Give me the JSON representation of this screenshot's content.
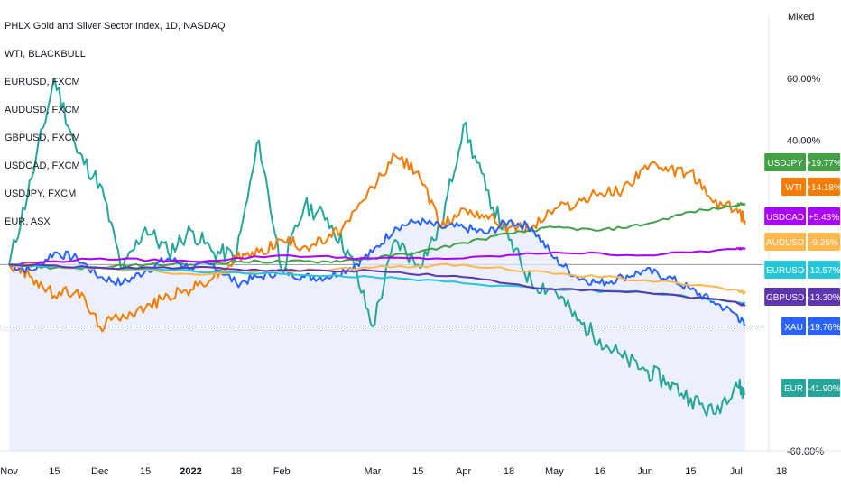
{
  "header": {
    "title": "PHLX Gold and Silver Sector Index, 1D, NASDAQ",
    "overlays": [
      "WTI, BLACKBULL",
      "EURUSD, FXCM",
      "AUDUSD, FXCM",
      "GBPUSD, FXCM",
      "USDCAD, FXCM",
      "USDJPY, FXCM",
      "EUR, ASX"
    ]
  },
  "scale_mode": "Mixed",
  "colors": {
    "XAU": "#2962ff",
    "WTI": "#f57c00",
    "EURUSD": "#26c6da",
    "AUDUSD": "#ffb74d",
    "GBPUSD": "#5e35b1",
    "USDCAD": "#aa00ff",
    "USDJPY": "#43a047",
    "EUR": "#26a69a",
    "area_fill": "#e3e9fb",
    "baseline": "#9598a1"
  },
  "chart_data": {
    "type": "line",
    "title": "PHLX Gold and Silver Sector Index, 1D, NASDAQ",
    "xlabel": "",
    "ylabel": "",
    "ylim": [
      -60,
      80
    ],
    "y_ticks": [
      "60.00%",
      "40.00%",
      "-60.00%"
    ],
    "x_ticks": [
      "Nov",
      "15",
      "Dec",
      "15",
      "2022",
      "18",
      "Feb",
      "Mar",
      "15",
      "Apr",
      "18",
      "May",
      "16",
      "Jun",
      "15",
      "Jul",
      "18"
    ],
    "x_tick_months": [
      0,
      0.5,
      1,
      1.5,
      2,
      2.5,
      3,
      4,
      4.5,
      5,
      5.5,
      6,
      6.5,
      7,
      7.5,
      8,
      8.5
    ],
    "x_range": [
      -0.1,
      8.3
    ],
    "series": [
      {
        "name": "EUR",
        "label": "EUR",
        "value_label": "-41.90%",
        "months": [
          0,
          0.25,
          0.5,
          0.75,
          1,
          1.25,
          1.5,
          1.75,
          2,
          2.25,
          2.5,
          2.75,
          3,
          3.25,
          3.5,
          3.75,
          4,
          4.25,
          4.5,
          4.75,
          5,
          5.25,
          5.5,
          5.75,
          6,
          6.25,
          6.5,
          6.75,
          7,
          7.25,
          7.5,
          7.75,
          8,
          8.1
        ],
        "values": [
          0,
          28,
          60,
          36,
          26,
          -2,
          12,
          4,
          11,
          4,
          3,
          40,
          -2,
          19,
          15,
          3,
          -20,
          8,
          0,
          12,
          45,
          24,
          8,
          -6,
          -8,
          -18,
          -24,
          -30,
          -34,
          -38,
          -43,
          -48,
          -38,
          -41.9
        ]
      },
      {
        "name": "WTI",
        "label": "WTI",
        "value_label": "+14.18%",
        "months": [
          0,
          0.25,
          0.5,
          0.75,
          1,
          1.25,
          1.5,
          1.75,
          2,
          2.25,
          2.5,
          2.75,
          3,
          3.25,
          3.5,
          3.75,
          4,
          4.25,
          4.5,
          4.75,
          5,
          5.25,
          5.5,
          5.75,
          6,
          6.25,
          6.5,
          6.75,
          7,
          7.25,
          7.5,
          7.75,
          8,
          8.1
        ],
        "values": [
          0,
          -4,
          -10,
          -8,
          -20,
          -16,
          -14,
          -10,
          -8,
          -4,
          2,
          4,
          8,
          6,
          8,
          14,
          25,
          35,
          30,
          12,
          18,
          16,
          12,
          12,
          18,
          20,
          23,
          24,
          32,
          30,
          30,
          20,
          18,
          14.18
        ]
      },
      {
        "name": "USDJPY",
        "label": "USDJPY",
        "value_label": "+19.77%",
        "months": [
          0,
          0.5,
          1,
          1.5,
          2,
          2.5,
          3,
          3.5,
          4,
          4.5,
          5,
          5.5,
          6,
          6.5,
          7,
          7.5,
          8,
          8.1
        ],
        "values": [
          0,
          -1,
          -1,
          0,
          0,
          1,
          1,
          1,
          2,
          4,
          7,
          10,
          12,
          11,
          13,
          17,
          19,
          19.77
        ]
      },
      {
        "name": "XAU",
        "label": "XAU",
        "value_label": "-19.76%",
        "months": [
          0,
          0.25,
          0.5,
          0.75,
          1,
          1.25,
          1.5,
          1.75,
          2,
          2.25,
          2.5,
          2.75,
          3,
          3.25,
          3.5,
          3.75,
          4,
          4.25,
          4.5,
          4.75,
          5,
          5.25,
          5.5,
          5.75,
          6,
          6.25,
          6.5,
          6.75,
          7,
          7.25,
          7.5,
          7.75,
          8,
          8.1
        ],
        "values": [
          0,
          -2,
          4,
          2,
          -4,
          -6,
          -2,
          2,
          -1,
          0,
          -6,
          -4,
          -2,
          -4,
          -4,
          -1,
          4,
          12,
          14,
          12,
          12,
          10,
          14,
          12,
          2,
          -4,
          -6,
          -4,
          -2,
          -4,
          -8,
          -12,
          -16,
          -19.76
        ]
      },
      {
        "name": "USDCAD",
        "label": "USDCAD",
        "value_label": "+5.43%",
        "months": [
          0,
          1,
          2,
          3,
          4,
          5,
          6,
          7,
          8,
          8.1
        ],
        "values": [
          0,
          2,
          1,
          3,
          2,
          2,
          4,
          3,
          5,
          5.43
        ]
      },
      {
        "name": "AUDUSD",
        "label": "AUDUSD",
        "value_label": "-9.25%",
        "months": [
          0,
          1,
          2,
          3,
          4,
          5,
          6,
          7,
          8,
          8.1
        ],
        "values": [
          0,
          -1,
          -3,
          -2,
          -1,
          0,
          -3,
          -5,
          -8,
          -9.25
        ]
      },
      {
        "name": "EURUSD",
        "label": "EURUSD",
        "value_label": "-12.57%",
        "months": [
          0,
          1,
          2,
          3,
          4,
          5,
          6,
          7,
          8,
          8.1
        ],
        "values": [
          0,
          -1,
          -2,
          -3,
          -4,
          -6,
          -8,
          -9,
          -12,
          -12.57
        ]
      },
      {
        "name": "GBPUSD",
        "label": "GBPUSD",
        "value_label": "-13.30%",
        "months": [
          0,
          1,
          2,
          3,
          4,
          5,
          6,
          7,
          8,
          8.1
        ],
        "values": [
          0,
          -1,
          -1,
          -2,
          -2,
          -4,
          -8,
          -9,
          -12,
          -13.3
        ]
      }
    ],
    "label_order": [
      "USDJPY",
      "WTI",
      "USDCAD",
      "AUDUSD",
      "EURUSD",
      "GBPUSD",
      "XAU",
      "EUR"
    ],
    "grid": false,
    "legend": "top-left"
  }
}
